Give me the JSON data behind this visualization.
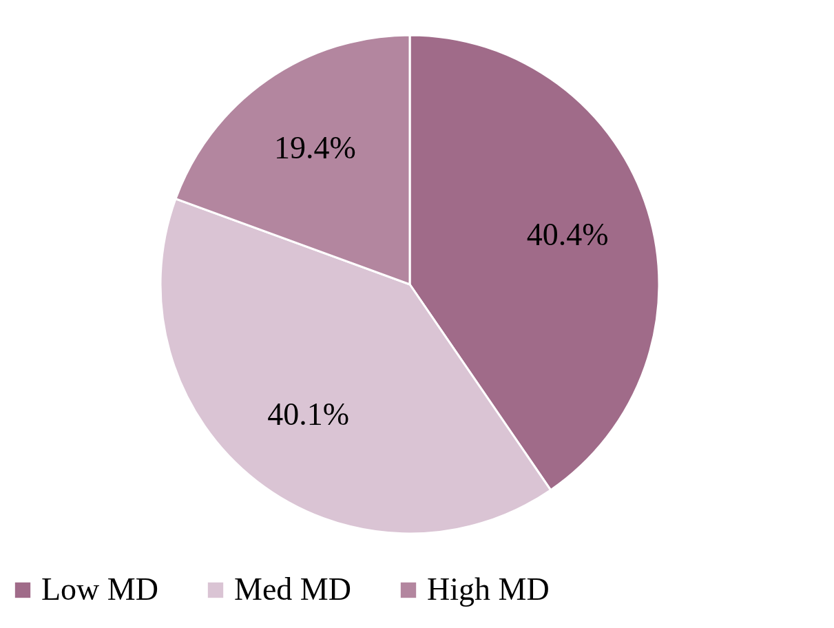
{
  "chart_data": {
    "type": "pie",
    "categories": [
      "Low MD",
      "Med MD",
      "High MD"
    ],
    "values": [
      40.4,
      40.1,
      19.4
    ],
    "colors": [
      "#a06b89",
      "#dac4d4",
      "#b3869f"
    ],
    "value_labels": [
      "40.4%",
      "40.1%",
      "19.4%"
    ],
    "legend": "bottom"
  }
}
